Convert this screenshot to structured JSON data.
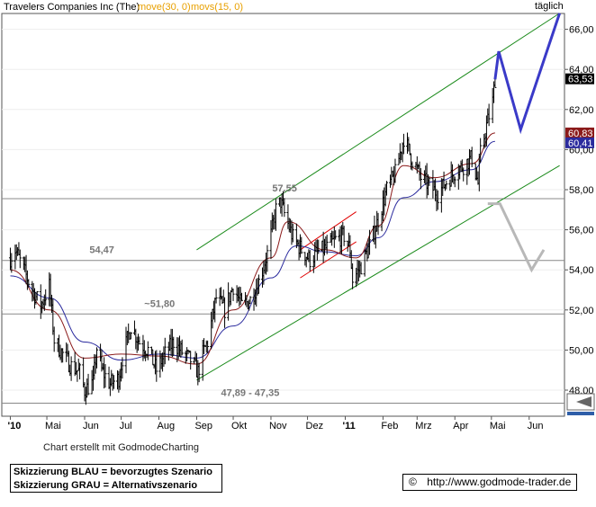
{
  "header": {
    "title": "Travelers Companies Inc (The)",
    "ma_slow_label": "move(30, 0)",
    "ma_fast_label": "movs(15, 0)",
    "period": "täglich"
  },
  "footer": {
    "credit": "Chart erstellt mit GodmodeCharting",
    "legend_blue": "Skizzierung BLAU = bevorzugtes Szenario",
    "legend_grey": "Skizzierung GRAU = Alternativszenario",
    "copyright_symbol": "©",
    "url": "http://www.godmode-trader.de"
  },
  "colors": {
    "price": "#000000",
    "ma_slow": "#2b2b9e",
    "ma_fast": "#8b1a1a",
    "channel": "#1a8a1a",
    "flag": "#e00000",
    "scenario_blue": "#3a3ac8",
    "scenario_grey": "#b8b8b8",
    "support": "#888888",
    "title_ma": "#e8a000"
  },
  "chart_data": {
    "type": "ohlc",
    "x_axis_labels": [
      "'10",
      "Mai",
      "Jun",
      "Jul",
      "Aug",
      "Sep",
      "Okt",
      "Nov",
      "Dez",
      "'11",
      "Feb",
      "Mrz",
      "Apr",
      "Mai",
      "Jun"
    ],
    "y_tick_labels": [
      "48,00",
      "50,00",
      "52,00",
      "54,00",
      "56,00",
      "58,00",
      "60,00",
      "62,00",
      "64,00",
      "66,00"
    ],
    "ylim": [
      47.0,
      67.0
    ],
    "price_path": [
      [
        "2010-04-01",
        54.6
      ],
      [
        "2010-04-05",
        55.0
      ],
      [
        "2010-04-12",
        54.0
      ],
      [
        "2010-04-19",
        53.0
      ],
      [
        "2010-04-26",
        52.2
      ],
      [
        "2010-05-03",
        53.2
      ],
      [
        "2010-05-07",
        50.5
      ],
      [
        "2010-05-14",
        49.8
      ],
      [
        "2010-05-21",
        49.2
      ],
      [
        "2010-05-28",
        48.9
      ],
      [
        "2010-06-01",
        48.0
      ],
      [
        "2010-06-08",
        48.4
      ],
      [
        "2010-06-11",
        50.1
      ],
      [
        "2010-06-15",
        49.0
      ],
      [
        "2010-06-22",
        48.3
      ],
      [
        "2010-06-29",
        48.6
      ],
      [
        "2010-07-02",
        49.6
      ],
      [
        "2010-07-09",
        51.2
      ],
      [
        "2010-07-16",
        50.4
      ],
      [
        "2010-07-23",
        50.0
      ],
      [
        "2010-07-30",
        49.0
      ],
      [
        "2010-08-06",
        49.8
      ],
      [
        "2010-08-13",
        50.4
      ],
      [
        "2010-08-20",
        49.9
      ],
      [
        "2010-08-27",
        49.5
      ],
      [
        "2010-09-02",
        48.9
      ],
      [
        "2010-09-06",
        49.8
      ],
      [
        "2010-09-10",
        50.4
      ],
      [
        "2010-09-17",
        52.6
      ],
      [
        "2010-09-24",
        52.0
      ],
      [
        "2010-10-01",
        53.2
      ],
      [
        "2010-10-08",
        52.2
      ],
      [
        "2010-10-15",
        52.5
      ],
      [
        "2010-10-22",
        53.4
      ],
      [
        "2010-10-29",
        54.8
      ],
      [
        "2010-11-05",
        57.0
      ],
      [
        "2010-11-09",
        57.4
      ],
      [
        "2010-11-12",
        56.8
      ],
      [
        "2010-11-19",
        55.6
      ],
      [
        "2010-11-26",
        55.0
      ],
      [
        "2010-12-03",
        54.5
      ],
      [
        "2010-12-10",
        54.9
      ],
      [
        "2010-12-17",
        55.1
      ],
      [
        "2010-12-24",
        55.5
      ],
      [
        "2010-12-31",
        55.7
      ],
      [
        "2011-01-05",
        55.0
      ],
      [
        "2011-01-07",
        53.5
      ],
      [
        "2011-01-14",
        54.2
      ],
      [
        "2011-01-21",
        55.2
      ],
      [
        "2011-01-28",
        56.5
      ],
      [
        "2011-02-04",
        58.0
      ],
      [
        "2011-02-11",
        58.8
      ],
      [
        "2011-02-18",
        60.6
      ],
      [
        "2011-02-25",
        59.5
      ],
      [
        "2011-03-04",
        58.6
      ],
      [
        "2011-03-11",
        58.2
      ],
      [
        "2011-03-18",
        57.8
      ],
      [
        "2011-03-25",
        58.4
      ],
      [
        "2011-04-01",
        58.9
      ],
      [
        "2011-04-08",
        59.2
      ],
      [
        "2011-04-15",
        59.6
      ],
      [
        "2011-04-20",
        58.3
      ],
      [
        "2011-04-22",
        59.8
      ],
      [
        "2011-04-27",
        61.2
      ],
      [
        "2011-05-02",
        62.4
      ],
      [
        "2011-05-04",
        63.53
      ]
    ],
    "ma_slow_path": [
      [
        "2010-04-01",
        53.7
      ],
      [
        "2010-05-03",
        52.6
      ],
      [
        "2010-06-01",
        50.4
      ],
      [
        "2010-07-01",
        49.5
      ],
      [
        "2010-08-02",
        49.8
      ],
      [
        "2010-09-01",
        49.6
      ],
      [
        "2010-10-01",
        51.2
      ],
      [
        "2010-11-01",
        53.6
      ],
      [
        "2010-11-22",
        55.2
      ],
      [
        "2010-12-15",
        54.9
      ],
      [
        "2011-01-10",
        54.7
      ],
      [
        "2011-01-28",
        55.6
      ],
      [
        "2011-02-18",
        57.6
      ],
      [
        "2011-03-15",
        58.4
      ],
      [
        "2011-04-15",
        59.0
      ],
      [
        "2011-05-04",
        60.41
      ]
    ],
    "ma_fast_path": [
      [
        "2010-04-01",
        54.0
      ],
      [
        "2010-05-03",
        52.0
      ],
      [
        "2010-06-01",
        49.6
      ],
      [
        "2010-07-01",
        49.8
      ],
      [
        "2010-08-02",
        49.7
      ],
      [
        "2010-09-01",
        49.3
      ],
      [
        "2010-10-01",
        52.0
      ],
      [
        "2010-11-01",
        54.6
      ],
      [
        "2010-11-15",
        56.4
      ],
      [
        "2010-12-15",
        55.0
      ],
      [
        "2011-01-10",
        54.6
      ],
      [
        "2011-01-28",
        56.2
      ],
      [
        "2011-02-18",
        59.2
      ],
      [
        "2011-03-15",
        58.6
      ],
      [
        "2011-04-15",
        59.3
      ],
      [
        "2011-05-04",
        60.83
      ]
    ],
    "channel_lines": [
      {
        "from": [
          "2010-09-01",
          55.0
        ],
        "to": [
          "2011-06-26",
          66.8
        ]
      },
      {
        "from": [
          "2010-09-01",
          48.5
        ],
        "to": [
          "2011-06-26",
          59.2
        ]
      }
    ],
    "flag_lines": [
      {
        "from": [
          "2010-11-25",
          55.0
        ],
        "to": [
          "2011-01-10",
          56.9
        ]
      },
      {
        "from": [
          "2010-11-25",
          53.6
        ],
        "to": [
          "2011-01-10",
          55.4
        ]
      }
    ],
    "support_lines": [
      {
        "value": 57.55,
        "label": "57,55",
        "label_date": "2010-11-02"
      },
      {
        "value": 54.47,
        "label": "54,47",
        "label_date": "2010-06-05"
      },
      {
        "value": 51.8,
        "label": "~51,80",
        "label_date": "2010-07-20"
      },
      {
        "value": 47.35,
        "label": "47,89 - 47,35",
        "label_date": "2010-09-21"
      }
    ],
    "scenario_blue": [
      [
        "2011-05-04",
        63.5
      ],
      [
        "2011-05-07",
        64.9
      ],
      [
        "2011-05-25",
        61.0
      ],
      [
        "2011-06-26",
        66.8
      ]
    ],
    "scenario_grey": [
      [
        "2011-04-28",
        57.3
      ],
      [
        "2011-05-08",
        57.3
      ],
      [
        "2011-06-03",
        54.0
      ],
      [
        "2011-06-13",
        55.0
      ]
    ],
    "last_values": [
      {
        "label": "63,53",
        "value": 63.53,
        "color": "#000000"
      },
      {
        "label": "60,83",
        "value": 60.83,
        "color": "#8b1a1a"
      },
      {
        "label": "60,41",
        "value": 60.41,
        "color": "#2b2b9e"
      }
    ]
  }
}
